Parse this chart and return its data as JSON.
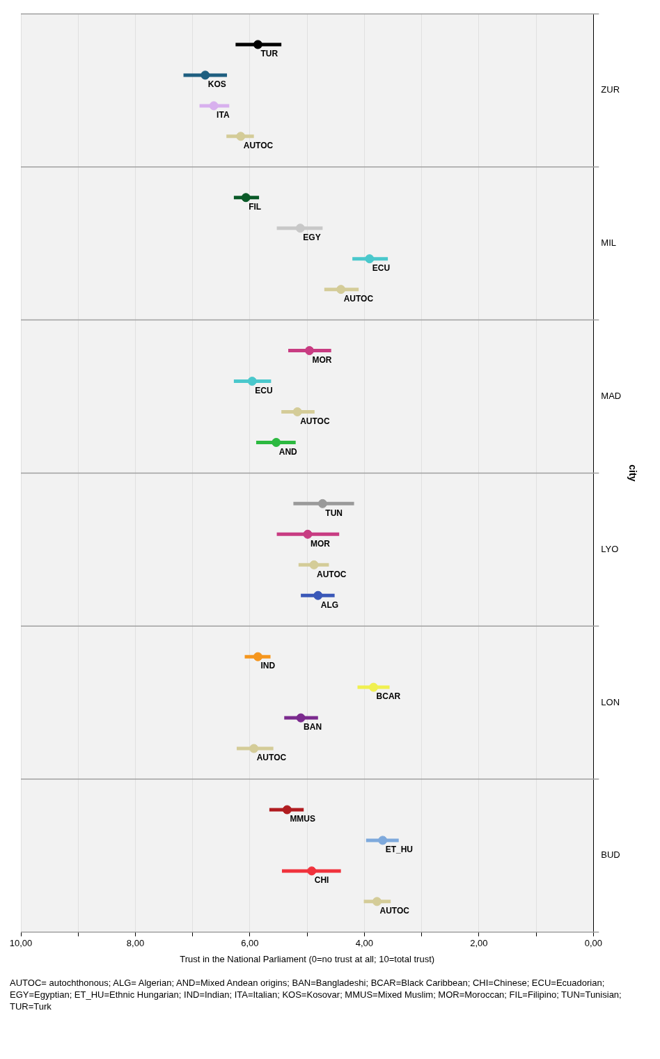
{
  "chart_data": {
    "type": "scatter",
    "orientation": "horizontal",
    "xlabel": "Trust in the National Parliament (0=no trust at all; 10=total trust)",
    "ylabel": "city",
    "categories": [
      "ZUR",
      "MIL",
      "MAD",
      "LYO",
      "LON",
      "BUD"
    ],
    "xlim": [
      10,
      0
    ],
    "xticks": [
      {
        "value": 10,
        "label": "10,00"
      },
      {
        "value": 9,
        "label": null
      },
      {
        "value": 8,
        "label": "8,00"
      },
      {
        "value": 7,
        "label": null
      },
      {
        "value": 6,
        "label": "6,00"
      },
      {
        "value": 5,
        "label": null
      },
      {
        "value": 4,
        "label": "4,00"
      },
      {
        "value": 3,
        "label": null
      },
      {
        "value": 2,
        "label": "2,00"
      },
      {
        "value": 1,
        "label": null
      },
      {
        "value": 0,
        "label": "0,00"
      }
    ],
    "grid": true,
    "legend": false,
    "marker": "circle",
    "annotations": [
      "AUTOC= autochthonous; ALG= Algerian; AND=Mixed Andean origins; BAN=Bangladeshi; BCAR=Black Caribbean; CHI=Chinese; ECU=Ecuadorian; EGY=Egyptian; ET_HU=Ethnic Hungarian; IND=Indian; ITA=Italian; KOS=Kosovar; MMUS=Mixed Muslim; MOR=Moroccan; FIL=Filipino; TUN=Tunisian; TUR=Turk"
    ],
    "series": [
      {
        "name": "ALG",
        "color": "#3a58b8",
        "values": [
          null,
          null,
          null,
          4.81,
          null,
          null
        ],
        "errors": [
          null,
          null,
          null,
          [
            4.52,
            5.11
          ],
          null,
          null
        ]
      },
      {
        "name": "AND",
        "color": "#2cb940",
        "values": [
          null,
          null,
          5.54,
          null,
          null,
          null
        ],
        "errors": [
          null,
          null,
          [
            5.2,
            5.89
          ],
          null,
          null,
          null
        ]
      },
      {
        "name": "AUTOC",
        "color": "#d4cc98",
        "values": [
          6.16,
          4.41,
          5.17,
          4.88,
          5.93,
          3.78
        ],
        "errors": [
          [
            5.93,
            6.41
          ],
          [
            4.1,
            4.7
          ],
          [
            4.87,
            5.45
          ],
          [
            4.62,
            5.15
          ],
          [
            5.59,
            6.23
          ],
          [
            3.54,
            4.01
          ]
        ]
      },
      {
        "name": "BAN",
        "color": "#7b2a8e",
        "values": [
          null,
          null,
          null,
          null,
          5.11,
          null
        ],
        "errors": [
          null,
          null,
          null,
          null,
          [
            4.81,
            5.4
          ],
          null
        ]
      },
      {
        "name": "BCAR",
        "color": "#f0f050",
        "values": [
          null,
          null,
          null,
          null,
          3.84,
          null
        ],
        "errors": [
          null,
          null,
          null,
          null,
          [
            3.56,
            4.12
          ],
          null
        ]
      },
      {
        "name": "CHI",
        "color": "#f0323c",
        "values": [
          null,
          null,
          null,
          null,
          null,
          4.92
        ],
        "errors": [
          null,
          null,
          null,
          null,
          null,
          [
            4.41,
            5.44
          ]
        ]
      },
      {
        "name": "ECU",
        "color": "#4ac8cc",
        "values": [
          null,
          3.91,
          5.96,
          null,
          null,
          null
        ],
        "errors": [
          null,
          [
            3.59,
            4.21
          ],
          [
            5.63,
            6.28
          ],
          null,
          null,
          null
        ]
      },
      {
        "name": "EGY",
        "color": "#c8c8c8",
        "values": [
          null,
          5.12,
          null,
          null,
          null,
          null
        ],
        "errors": [
          null,
          [
            4.73,
            5.53
          ],
          null,
          null,
          null,
          null
        ]
      },
      {
        "name": "ET_HU",
        "color": "#7ea9dc",
        "values": [
          null,
          null,
          null,
          null,
          null,
          3.68
        ],
        "errors": [
          null,
          null,
          null,
          null,
          null,
          [
            3.4,
            3.97
          ]
        ]
      },
      {
        "name": "FIL",
        "color": "#0a5a28",
        "values": [
          null,
          6.07,
          null,
          null,
          null,
          null
        ],
        "errors": [
          null,
          [
            5.84,
            6.28
          ],
          null,
          null,
          null,
          null
        ]
      },
      {
        "name": "IND",
        "color": "#f5961e",
        "values": [
          null,
          null,
          null,
          null,
          5.86,
          null
        ],
        "errors": [
          null,
          null,
          null,
          null,
          [
            5.64,
            6.09
          ],
          null
        ]
      },
      {
        "name": "ITA",
        "color": "#d8b0ee",
        "values": [
          6.63,
          null,
          null,
          null,
          null,
          null
        ],
        "errors": [
          [
            6.36,
            6.88
          ],
          null,
          null,
          null,
          null,
          null
        ]
      },
      {
        "name": "KOS",
        "color": "#1e5f80",
        "values": [
          6.78,
          null,
          null,
          null,
          null,
          null
        ],
        "errors": [
          [
            6.4,
            7.16
          ],
          null,
          null,
          null,
          null,
          null
        ]
      },
      {
        "name": "MMUS",
        "color": "#b01c20",
        "values": [
          null,
          null,
          null,
          null,
          null,
          5.35
        ],
        "errors": [
          null,
          null,
          null,
          null,
          null,
          [
            5.06,
            5.66
          ]
        ]
      },
      {
        "name": "MOR",
        "color": "#c83c82",
        "values": [
          null,
          null,
          4.96,
          4.99,
          null,
          null
        ],
        "errors": [
          null,
          null,
          [
            4.58,
            5.33
          ],
          [
            4.44,
            5.53
          ],
          null,
          null
        ]
      },
      {
        "name": "TUN",
        "color": "#9a9a9a",
        "values": [
          null,
          null,
          null,
          4.73,
          null,
          null
        ],
        "errors": [
          null,
          null,
          null,
          [
            4.18,
            5.24
          ],
          null,
          null
        ]
      },
      {
        "name": "TUR",
        "color": "#000000",
        "values": [
          5.86,
          null,
          null,
          null,
          null,
          null
        ],
        "errors": [
          [
            5.45,
            6.25
          ],
          null,
          null,
          null,
          null,
          null
        ]
      }
    ]
  }
}
